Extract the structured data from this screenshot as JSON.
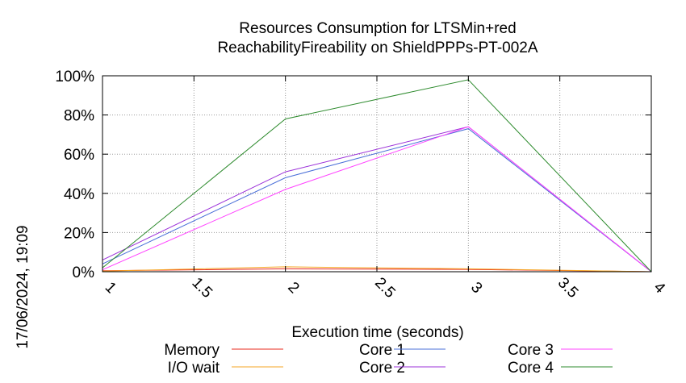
{
  "chart_data": {
    "type": "line",
    "title_lines": [
      "Resources Consumption for LTSMin+red",
      "ReachabilityFireability on ShieldPPPs-PT-002A"
    ],
    "xlabel": "Execution time (seconds)",
    "ylabel": "",
    "side_label": "17/06/2024, 19:09",
    "xlim": [
      1,
      4
    ],
    "ylim": [
      0,
      100
    ],
    "x_ticks": [
      {
        "value": 1,
        "label": "1"
      },
      {
        "value": 1.5,
        "label": "1.5"
      },
      {
        "value": 2,
        "label": "2"
      },
      {
        "value": 2.5,
        "label": "2.5"
      },
      {
        "value": 3,
        "label": "3"
      },
      {
        "value": 3.5,
        "label": "3.5"
      },
      {
        "value": 4,
        "label": "4"
      }
    ],
    "y_ticks": [
      {
        "value": 0,
        "label": "0%"
      },
      {
        "value": 20,
        "label": "20%"
      },
      {
        "value": 40,
        "label": "40%"
      },
      {
        "value": 60,
        "label": "60%"
      },
      {
        "value": 80,
        "label": "80%"
      },
      {
        "value": 100,
        "label": "100%"
      }
    ],
    "grid": true,
    "legend_position": "bottom",
    "series": [
      {
        "name": "Memory",
        "color": "#e8281c",
        "x": [
          1,
          2,
          3,
          4
        ],
        "y": [
          0.5,
          1.5,
          1.2,
          0
        ]
      },
      {
        "name": "I/O wait",
        "color": "#f5a623",
        "x": [
          1,
          2,
          3,
          4
        ],
        "y": [
          0.3,
          2.5,
          1.5,
          0
        ]
      },
      {
        "name": "Core 1",
        "color": "#4a6fd8",
        "x": [
          1,
          2,
          3,
          4
        ],
        "y": [
          4,
          48,
          73,
          0
        ]
      },
      {
        "name": "Core 2",
        "color": "#9b30d9",
        "x": [
          1,
          2,
          3,
          4
        ],
        "y": [
          6,
          51,
          74,
          0
        ]
      },
      {
        "name": "Core 3",
        "color": "#ff44ff",
        "x": [
          1,
          2,
          3,
          4
        ],
        "y": [
          1,
          42,
          74,
          0
        ]
      },
      {
        "name": "Core 4",
        "color": "#2e8b2e",
        "x": [
          1,
          2,
          3,
          4
        ],
        "y": [
          2,
          78,
          98,
          0
        ]
      }
    ]
  }
}
